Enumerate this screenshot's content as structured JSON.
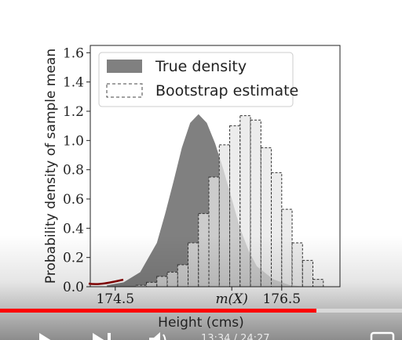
{
  "chart_data": {
    "type": "bar",
    "ylabel": "Probability density of sample mean",
    "xlabel": "Height (cms)",
    "x_tick_labels": [
      "174.5",
      "m(X)",
      "176.5"
    ],
    "y_ticks": [
      0.0,
      0.2,
      0.4,
      0.6,
      0.8,
      1.0,
      1.2,
      1.4,
      1.6
    ],
    "y_tick_labels": [
      "0.0",
      "0.2",
      "0.4",
      "0.6",
      "0.8",
      "1.0",
      "1.2",
      "1.4",
      "1.6"
    ],
    "xlim": [
      174.2,
      177.2
    ],
    "ylim": [
      0,
      1.65
    ],
    "legend_position": "top-left",
    "legend": [
      "True density",
      "Bootstrap estimate"
    ],
    "series": [
      {
        "name": "True density",
        "style": "filled-dark-gray",
        "x": [
          174.4,
          174.6,
          174.8,
          175.0,
          175.1,
          175.2,
          175.3,
          175.4,
          175.5,
          175.6,
          175.7,
          175.8,
          175.9,
          176.0,
          176.1,
          176.2,
          176.4,
          176.6,
          176.8
        ],
        "values": [
          0.01,
          0.03,
          0.1,
          0.3,
          0.5,
          0.72,
          0.95,
          1.12,
          1.18,
          1.12,
          0.98,
          0.8,
          0.6,
          0.4,
          0.25,
          0.14,
          0.05,
          0.01,
          0.0
        ]
      },
      {
        "name": "Bootstrap estimate",
        "style": "step-dashed-light-fill",
        "bin_edges": [
          174.75,
          174.875,
          175.0,
          175.125,
          175.25,
          175.375,
          175.5,
          175.625,
          175.75,
          175.875,
          176.0,
          176.125,
          176.25,
          176.375,
          176.5,
          176.625,
          176.75,
          176.875,
          177.0
        ],
        "values": [
          0.01,
          0.03,
          0.07,
          0.1,
          0.15,
          0.3,
          0.5,
          0.75,
          0.97,
          1.1,
          1.17,
          1.14,
          0.95,
          0.78,
          0.53,
          0.3,
          0.18,
          0.05
        ]
      }
    ]
  },
  "player": {
    "progress": 0.787,
    "time": "13:34 / 24:27"
  },
  "colors": {
    "true_density": "#808080",
    "bootstrap_fill": "#e6e6e6",
    "progress": "#ff0000",
    "annotation": "#8b0000"
  }
}
